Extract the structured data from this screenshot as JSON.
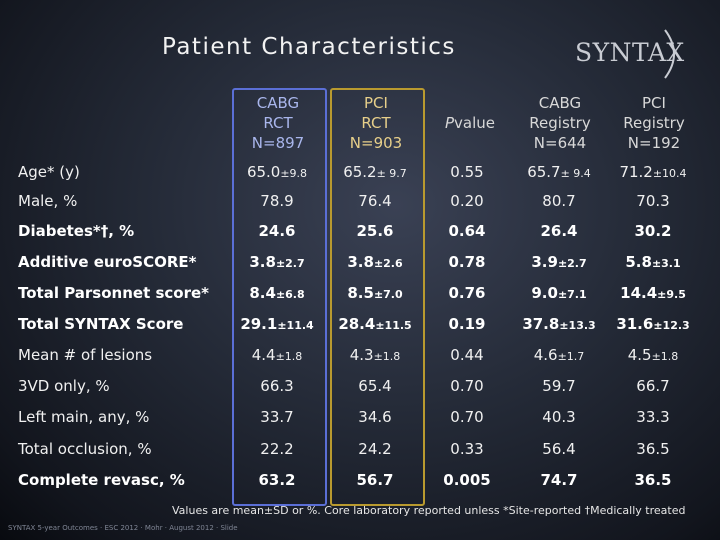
{
  "slide": {
    "title": "Patient Characteristics",
    "logo_text": "SYNTAX"
  },
  "table": {
    "headers": [
      {
        "lines": "CABG\nRCT\nN=897"
      },
      {
        "lines": "PCI\nRCT\nN=903"
      },
      {
        "italic": "P",
        "rest": " value"
      },
      {
        "lines": "CABG\nRegistry\nN=644"
      },
      {
        "lines": "PCI\nRegistry\nN=192"
      }
    ],
    "rows": [
      {
        "label": "Age* (y)",
        "bold": false,
        "cells": [
          {
            "v": "65.0",
            "sd": "±9.8"
          },
          {
            "v": "65.2",
            "sd": "± 9.7"
          },
          {
            "v": "0.55",
            "sd": ""
          },
          {
            "v": "65.7",
            "sd": "± 9.4"
          },
          {
            "v": "71.2",
            "sd": "±10.4"
          }
        ]
      },
      {
        "label": "Male, %",
        "bold": false,
        "cells": [
          {
            "v": "78.9",
            "sd": ""
          },
          {
            "v": "76.4",
            "sd": ""
          },
          {
            "v": "0.20",
            "sd": ""
          },
          {
            "v": "80.7",
            "sd": ""
          },
          {
            "v": "70.3",
            "sd": ""
          }
        ]
      },
      {
        "label": "Diabetes*†, %",
        "bold": true,
        "cells": [
          {
            "v": "24.6",
            "sd": ""
          },
          {
            "v": "25.6",
            "sd": ""
          },
          {
            "v": "0.64",
            "sd": ""
          },
          {
            "v": "26.4",
            "sd": ""
          },
          {
            "v": "30.2",
            "sd": ""
          }
        ]
      },
      {
        "label": "Additive euroSCORE*",
        "bold": true,
        "cells": [
          {
            "v": "3.8",
            "sd": "±2.7"
          },
          {
            "v": "3.8",
            "sd": "±2.6"
          },
          {
            "v": "0.78",
            "sd": ""
          },
          {
            "v": "3.9",
            "sd": "±2.7"
          },
          {
            "v": "5.8",
            "sd": "±3.1"
          }
        ]
      },
      {
        "label": "Total Parsonnet score*",
        "bold": true,
        "cells": [
          {
            "v": "8.4",
            "sd": "±6.8"
          },
          {
            "v": "8.5",
            "sd": "±7.0"
          },
          {
            "v": "0.76",
            "sd": ""
          },
          {
            "v": "9.0",
            "sd": "±7.1"
          },
          {
            "v": "14.4",
            "sd": "±9.5"
          }
        ]
      },
      {
        "label": "Total SYNTAX Score",
        "bold": true,
        "cells": [
          {
            "v": "29.1",
            "sd": "±11.4"
          },
          {
            "v": "28.4",
            "sd": "±11.5"
          },
          {
            "v": "0.19",
            "sd": ""
          },
          {
            "v": "37.8",
            "sd": "±13.3"
          },
          {
            "v": "31.6",
            "sd": "±12.3"
          }
        ]
      },
      {
        "label": "Mean # of lesions",
        "bold": false,
        "cells": [
          {
            "v": "4.4",
            "sd": "±1.8"
          },
          {
            "v": "4.3",
            "sd": "±1.8"
          },
          {
            "v": "0.44",
            "sd": ""
          },
          {
            "v": "4.6",
            "sd": "±1.7"
          },
          {
            "v": "4.5",
            "sd": "±1.8"
          }
        ]
      },
      {
        "label": "3VD only, %",
        "bold": false,
        "cells": [
          {
            "v": "66.3",
            "sd": ""
          },
          {
            "v": "65.4",
            "sd": ""
          },
          {
            "v": "0.70",
            "sd": ""
          },
          {
            "v": "59.7",
            "sd": ""
          },
          {
            "v": "66.7",
            "sd": ""
          }
        ]
      },
      {
        "label": "Left main, any, %",
        "bold": false,
        "cells": [
          {
            "v": "33.7",
            "sd": ""
          },
          {
            "v": "34.6",
            "sd": ""
          },
          {
            "v": "0.70",
            "sd": ""
          },
          {
            "v": "40.3",
            "sd": ""
          },
          {
            "v": "33.3",
            "sd": ""
          }
        ]
      },
      {
        "label": "Total occlusion, %",
        "bold": false,
        "cells": [
          {
            "v": "22.2",
            "sd": ""
          },
          {
            "v": "24.2",
            "sd": ""
          },
          {
            "v": "0.33",
            "sd": ""
          },
          {
            "v": "56.4",
            "sd": ""
          },
          {
            "v": "36.5",
            "sd": ""
          }
        ]
      },
      {
        "label": "Complete revasc, %",
        "bold": true,
        "cells": [
          {
            "v": "63.2",
            "sd": ""
          },
          {
            "v": "56.7",
            "sd": ""
          },
          {
            "v": "0.005",
            "sd": ""
          },
          {
            "v": "74.7",
            "sd": ""
          },
          {
            "v": "36.5",
            "sd": ""
          }
        ]
      }
    ]
  },
  "footnote": "Values are mean±SD or %.  Core laboratory reported unless *Site-reported †Medically treated",
  "footer": "SYNTAX 5-year Outcomes  ·  ESC 2012  ·  Mohr  ·  August 2012  ·  Slide"
}
